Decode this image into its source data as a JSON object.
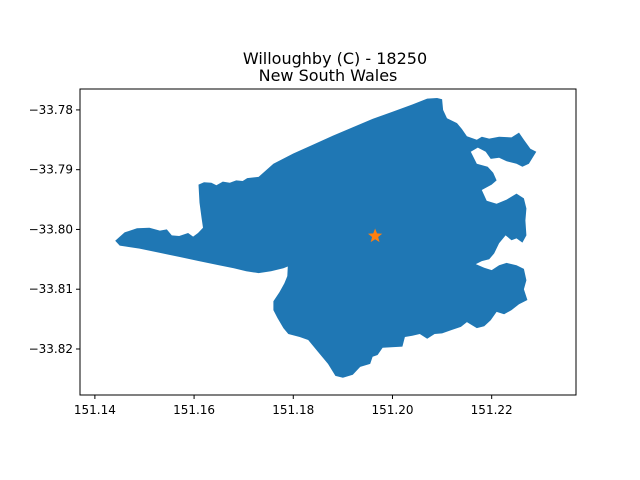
{
  "chart_data": {
    "type": "map",
    "title_line1": "Willoughby (C) - 18250",
    "title_line2": "New South Wales",
    "xlabel": "",
    "ylabel": "",
    "xlim": [
      151.137,
      151.237
    ],
    "ylim": [
      -33.8277,
      -33.7765
    ],
    "x_ticks": [
      {
        "value": 151.14,
        "label": "151.14"
      },
      {
        "value": 151.16,
        "label": "151.16"
      },
      {
        "value": 151.18,
        "label": "151.18"
      },
      {
        "value": 151.2,
        "label": "151.20"
      },
      {
        "value": 151.22,
        "label": "151.22"
      }
    ],
    "y_ticks": [
      {
        "value": -33.78,
        "label": "−33.78"
      },
      {
        "value": -33.79,
        "label": "−33.79"
      },
      {
        "value": -33.8,
        "label": "−33.80"
      },
      {
        "value": -33.81,
        "label": "−33.81"
      },
      {
        "value": -33.82,
        "label": "−33.82"
      }
    ],
    "grid": false,
    "region_color": "#1f77b4",
    "marker": {
      "lon": 151.1965,
      "lat": -33.8011,
      "symbol": "star",
      "color": "#ff7f0e"
    },
    "region_outline": [
      [
        151.1441,
        -33.8019
      ],
      [
        151.146,
        -33.8005
      ],
      [
        151.1485,
        -33.7998
      ],
      [
        151.151,
        -33.7997
      ],
      [
        151.1531,
        -33.8002
      ],
      [
        151.1545,
        -33.8
      ],
      [
        151.1555,
        -33.801
      ],
      [
        151.157,
        -33.8011
      ],
      [
        151.1588,
        -33.8006
      ],
      [
        151.1598,
        -33.8012
      ],
      [
        151.1608,
        -33.8006
      ],
      [
        151.1618,
        -33.7997
      ],
      [
        151.1615,
        -33.798
      ],
      [
        151.1611,
        -33.7955
      ],
      [
        151.1609,
        -33.7925
      ],
      [
        151.162,
        -33.7921
      ],
      [
        151.1635,
        -33.7922
      ],
      [
        151.1645,
        -33.7926
      ],
      [
        151.1658,
        -33.792
      ],
      [
        151.1672,
        -33.7922
      ],
      [
        151.1685,
        -33.7918
      ],
      [
        151.1698,
        -33.7919
      ],
      [
        151.1707,
        -33.7914
      ],
      [
        151.173,
        -33.7912
      ],
      [
        151.176,
        -33.789
      ],
      [
        151.18,
        -33.7873
      ],
      [
        151.184,
        -33.7858
      ],
      [
        151.188,
        -33.7843
      ],
      [
        151.192,
        -33.7829
      ],
      [
        151.196,
        -33.7815
      ],
      [
        151.2,
        -33.7803
      ],
      [
        151.204,
        -33.7791
      ],
      [
        151.207,
        -33.7781
      ],
      [
        151.209,
        -33.778
      ],
      [
        151.21,
        -33.7782
      ],
      [
        151.2102,
        -33.78
      ],
      [
        151.211,
        -33.7814
      ],
      [
        151.213,
        -33.7822
      ],
      [
        151.214,
        -33.7832
      ],
      [
        151.215,
        -33.7844
      ],
      [
        151.217,
        -33.785
      ],
      [
        151.218,
        -33.7845
      ],
      [
        151.2195,
        -33.7848
      ],
      [
        151.2215,
        -33.7845
      ],
      [
        151.224,
        -33.7846
      ],
      [
        151.2255,
        -33.7838
      ],
      [
        151.2265,
        -33.785
      ],
      [
        151.2278,
        -33.7865
      ],
      [
        151.229,
        -33.787
      ],
      [
        151.2275,
        -33.789
      ],
      [
        151.2262,
        -33.7895
      ],
      [
        151.225,
        -33.789
      ],
      [
        151.223,
        -33.7886
      ],
      [
        151.2215,
        -33.788
      ],
      [
        151.2198,
        -33.7882
      ],
      [
        151.2188,
        -33.787
      ],
      [
        151.2172,
        -33.7863
      ],
      [
        151.2158,
        -33.787
      ],
      [
        151.217,
        -33.789
      ],
      [
        151.2192,
        -33.7895
      ],
      [
        151.2203,
        -33.7905
      ],
      [
        151.221,
        -33.7918
      ],
      [
        151.22,
        -33.7925
      ],
      [
        151.218,
        -33.7934
      ],
      [
        151.219,
        -33.7952
      ],
      [
        151.221,
        -33.7957
      ],
      [
        151.223,
        -33.795
      ],
      [
        151.225,
        -33.794
      ],
      [
        151.2265,
        -33.7948
      ],
      [
        151.227,
        -33.7965
      ],
      [
        151.2268,
        -33.7985
      ],
      [
        151.227,
        -33.801
      ],
      [
        151.2262,
        -33.8022
      ],
      [
        151.225,
        -33.8015
      ],
      [
        151.224,
        -33.8018
      ],
      [
        151.2228,
        -33.801
      ],
      [
        151.2215,
        -33.8023
      ],
      [
        151.2205,
        -33.804
      ],
      [
        151.2195,
        -33.805
      ],
      [
        151.218,
        -33.8053
      ],
      [
        151.2168,
        -33.8058
      ],
      [
        151.2185,
        -33.8064
      ],
      [
        151.22,
        -33.8068
      ],
      [
        151.2215,
        -33.806
      ],
      [
        151.223,
        -33.8056
      ],
      [
        151.225,
        -33.806
      ],
      [
        151.2265,
        -33.8066
      ],
      [
        151.227,
        -33.8085
      ],
      [
        151.2265,
        -33.81
      ],
      [
        151.2272,
        -33.8118
      ],
      [
        151.2255,
        -33.8125
      ],
      [
        151.224,
        -33.8135
      ],
      [
        151.2225,
        -33.8142
      ],
      [
        151.221,
        -33.8138
      ],
      [
        151.2198,
        -33.8152
      ],
      [
        151.2185,
        -33.8162
      ],
      [
        151.217,
        -33.8165
      ],
      [
        151.215,
        -33.8155
      ],
      [
        151.2138,
        -33.8163
      ],
      [
        151.212,
        -33.8168
      ],
      [
        151.21,
        -33.8174
      ],
      [
        151.2085,
        -33.8175
      ],
      [
        151.207,
        -33.8183
      ],
      [
        151.2055,
        -33.8175
      ],
      [
        151.204,
        -33.8178
      ],
      [
        151.2025,
        -33.818
      ],
      [
        151.202,
        -33.8196
      ],
      [
        151.198,
        -33.8198
      ],
      [
        151.197,
        -33.821
      ],
      [
        151.196,
        -33.8213
      ],
      [
        151.1955,
        -33.8225
      ],
      [
        151.1935,
        -33.823
      ],
      [
        151.192,
        -33.8243
      ],
      [
        151.19,
        -33.8248
      ],
      [
        151.1885,
        -33.8245
      ],
      [
        151.187,
        -33.8225
      ],
      [
        151.185,
        -33.8205
      ],
      [
        151.183,
        -33.8185
      ],
      [
        151.1813,
        -33.818
      ],
      [
        151.179,
        -33.8175
      ],
      [
        151.178,
        -33.8165
      ],
      [
        151.1768,
        -33.8148
      ],
      [
        151.176,
        -33.8135
      ],
      [
        151.176,
        -33.812
      ],
      [
        151.1772,
        -33.8105
      ],
      [
        151.1782,
        -33.809
      ],
      [
        151.1788,
        -33.8078
      ],
      [
        151.1789,
        -33.8062
      ],
      [
        151.178,
        -33.8065
      ],
      [
        151.1755,
        -33.807
      ],
      [
        151.173,
        -33.8073
      ],
      [
        151.1705,
        -33.807
      ],
      [
        151.168,
        -33.8065
      ],
      [
        151.165,
        -33.806
      ],
      [
        151.161,
        -33.8053
      ],
      [
        151.157,
        -33.8046
      ],
      [
        151.153,
        -33.8039
      ],
      [
        151.149,
        -33.8032
      ],
      [
        151.145,
        -33.8027
      ],
      [
        151.1441,
        -33.8019
      ]
    ]
  }
}
